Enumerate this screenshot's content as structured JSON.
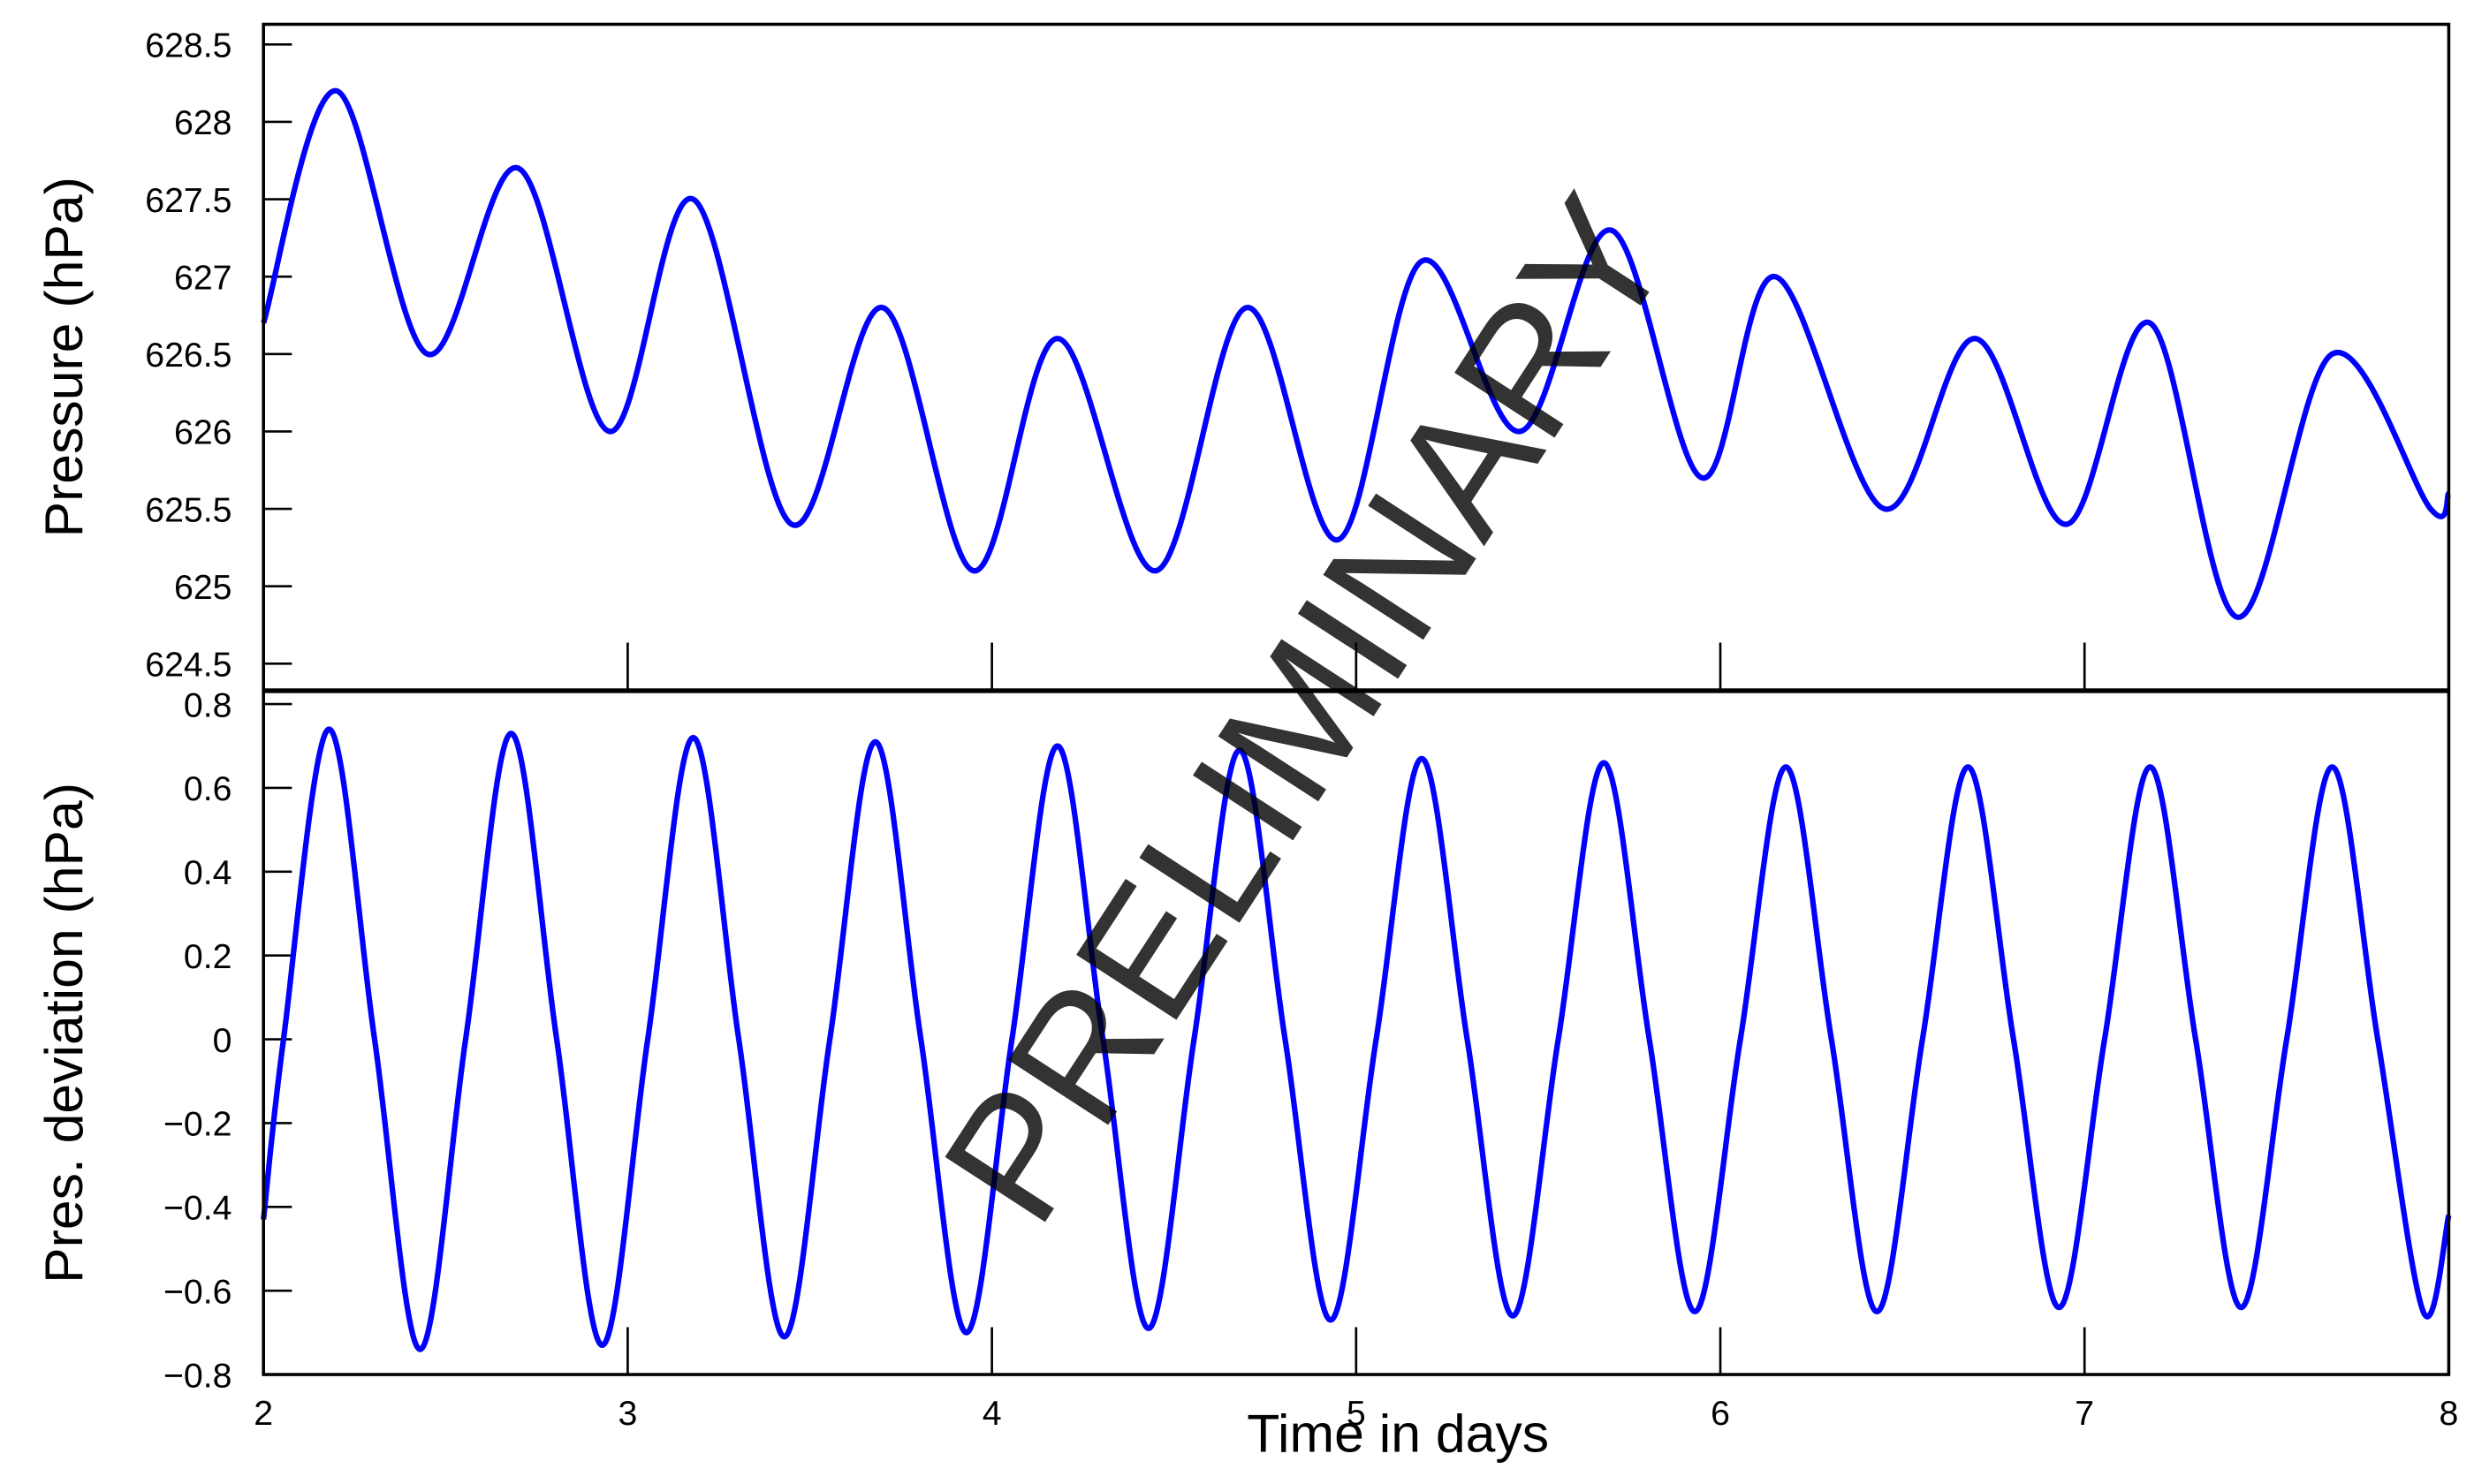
{
  "chart_data": [
    {
      "type": "line",
      "ylabel": "Pressure (hPa)",
      "xlim": [
        2,
        8
      ],
      "ylim": [
        624.33,
        628.63
      ],
      "yticks": [
        624.5,
        625,
        625.5,
        626,
        626.5,
        627,
        627.5,
        628,
        628.5
      ],
      "x": [
        2.0,
        2.2,
        2.45,
        2.7,
        2.95,
        3.18,
        3.45,
        3.7,
        3.95,
        4.18,
        4.45,
        4.7,
        4.95,
        5.18,
        5.45,
        5.7,
        5.95,
        6.15,
        6.45,
        6.7,
        6.95,
        7.18,
        7.42,
        7.68,
        7.95,
        8.0
      ],
      "color": "#0000ff",
      "values": [
        626.7,
        628.2,
        626.5,
        627.7,
        626.0,
        627.5,
        625.4,
        626.8,
        625.1,
        626.6,
        625.1,
        626.8,
        625.3,
        627.1,
        626.0,
        627.3,
        625.7,
        627.0,
        625.5,
        626.6,
        625.4,
        626.7,
        624.8,
        626.5,
        625.5,
        625.6
      ]
    },
    {
      "type": "line",
      "ylabel": "Pres. deviation (hPa)",
      "xlabel": "Time in days",
      "xlim": [
        2,
        8
      ],
      "ylim": [
        -0.8,
        0.83
      ],
      "xticks": [
        2,
        3,
        4,
        5,
        6,
        7,
        8
      ],
      "yticks": [
        {
          "value": -0.8,
          "label": "−0.8"
        },
        {
          "value": -0.6,
          "label": "−0.6"
        },
        {
          "value": -0.4,
          "label": "−0.4"
        },
        {
          "value": -0.2,
          "label": "−0.2"
        },
        0,
        0.2,
        0.4,
        0.6,
        0.8
      ],
      "x": [
        2.0,
        2.055,
        2.18,
        2.305,
        2.43,
        2.555,
        2.68,
        2.805,
        2.93,
        3.055,
        3.18,
        3.305,
        3.43,
        3.555,
        3.68,
        3.805,
        3.93,
        4.055,
        4.18,
        4.305,
        4.43,
        4.555,
        4.68,
        4.805,
        4.93,
        5.055,
        5.18,
        5.305,
        5.43,
        5.555,
        5.68,
        5.805,
        5.93,
        6.055,
        6.18,
        6.305,
        6.43,
        6.555,
        6.68,
        6.805,
        6.93,
        7.055,
        7.18,
        7.305,
        7.43,
        7.555,
        7.68,
        7.805,
        7.93,
        8.0
      ],
      "color": "#0000ff",
      "values": [
        -0.43,
        0,
        0.74,
        0,
        -0.74,
        0,
        0.73,
        0,
        -0.73,
        0,
        0.72,
        0,
        -0.71,
        0,
        0.71,
        0,
        -0.7,
        0,
        0.7,
        0,
        -0.69,
        0,
        0.69,
        0,
        -0.67,
        0,
        0.67,
        0,
        -0.66,
        0,
        0.66,
        0,
        -0.65,
        0,
        0.65,
        0,
        -0.65,
        0,
        0.65,
        0,
        -0.64,
        0,
        0.65,
        0,
        -0.64,
        0,
        0.65,
        0,
        -0.65,
        -0.42
      ]
    }
  ],
  "watermark": "PRELIMINARY"
}
